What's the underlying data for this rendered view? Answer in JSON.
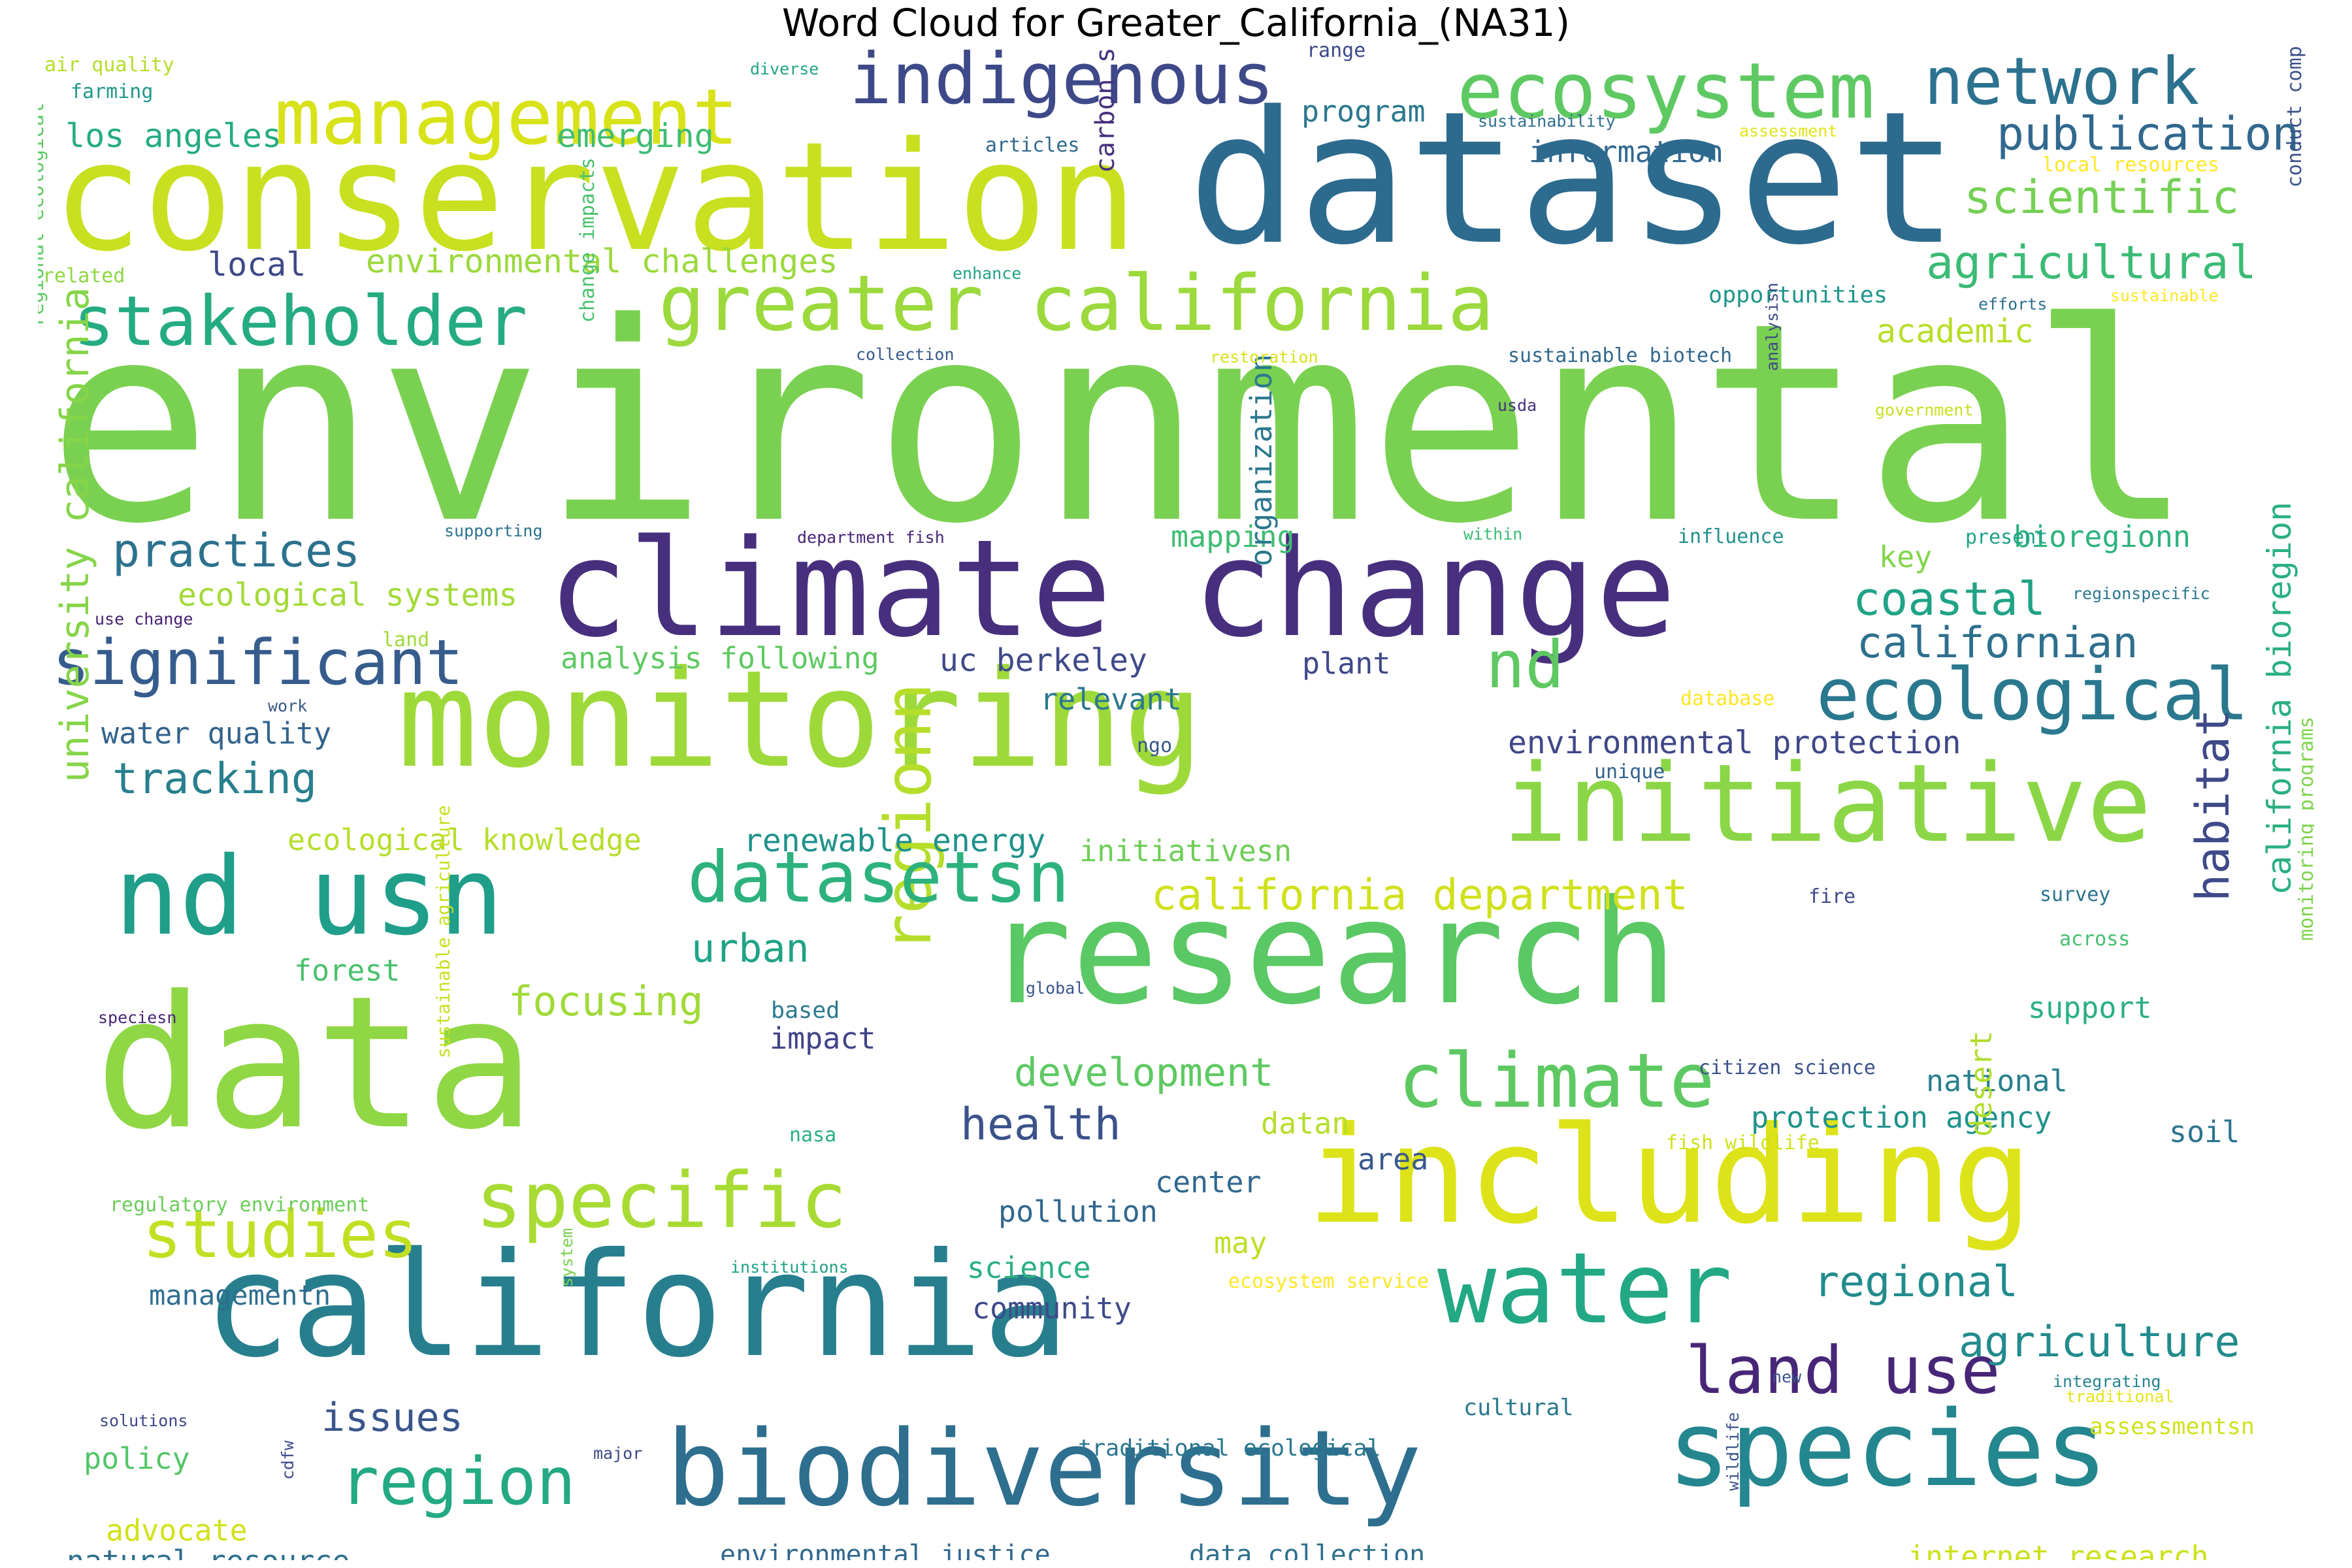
{
  "title": "Word Cloud for Greater_California_(NA31)",
  "palette": [
    "#440154",
    "#472c7a",
    "#3b518b",
    "#2c718e",
    "#21908d",
    "#27ad81",
    "#5cc863",
    "#aadc32",
    "#fde725"
  ],
  "words": [
    {
      "text": "environmental",
      "color": "#7ad151"
    },
    {
      "text": "dataset",
      "color": "#2c6b8e"
    },
    {
      "text": "conservation",
      "color": "#c8e020"
    },
    {
      "text": "climate change",
      "color": "#472f7d"
    },
    {
      "text": "monitoring",
      "color": "#9ed93a"
    },
    {
      "text": "research",
      "color": "#5ac864"
    },
    {
      "text": "data",
      "color": "#8fd744"
    },
    {
      "text": "california",
      "color": "#277f8e"
    },
    {
      "text": "including",
      "color": "#dde318"
    },
    {
      "text": "biodiversity",
      "color": "#2e6e8e"
    },
    {
      "text": "species",
      "color": "#24868e"
    },
    {
      "text": "initiative",
      "color": "#8bd646"
    },
    {
      "text": "nd usn",
      "color": "#1f9e89"
    },
    {
      "text": "water",
      "color": "#22a884"
    },
    {
      "text": "greater california",
      "color": "#9bd93c"
    },
    {
      "text": "management",
      "color": "#d8e219"
    },
    {
      "text": "ecosystem",
      "color": "#5ec962"
    },
    {
      "text": "indigenous",
      "color": "#3e4989"
    },
    {
      "text": "network",
      "color": "#2c728e"
    },
    {
      "text": "ecological",
      "color": "#2a788e"
    },
    {
      "text": "stakeholder",
      "color": "#25ab82"
    },
    {
      "text": "significant",
      "color": "#365c8d"
    },
    {
      "text": "climate",
      "color": "#5ec962"
    },
    {
      "text": "specific",
      "color": "#a8db34"
    },
    {
      "text": "regionn",
      "color": "#b5de2b"
    },
    {
      "text": "datasetsn",
      "color": "#2db27d"
    },
    {
      "text": "region",
      "color": "#23a983"
    },
    {
      "text": "studies",
      "color": "#c2df23"
    },
    {
      "text": "land use",
      "color": "#482677"
    },
    {
      "text": "nd",
      "color": "#5ec962"
    },
    {
      "text": "publication",
      "color": "#31688e"
    },
    {
      "text": "scientific",
      "color": "#75d054"
    },
    {
      "text": "agricultural",
      "color": "#3bbb75"
    },
    {
      "text": "practices",
      "color": "#2c728e"
    },
    {
      "text": "coastal",
      "color": "#20a386"
    },
    {
      "text": "californian",
      "color": "#2e6f8e"
    },
    {
      "text": "tracking",
      "color": "#277f8e"
    },
    {
      "text": "habitat",
      "color": "#3e4a89"
    },
    {
      "text": "university california",
      "color": "#86d549"
    },
    {
      "text": "california department",
      "color": "#d0e11c"
    },
    {
      "text": "regional",
      "color": "#228c8d"
    },
    {
      "text": "agriculture",
      "color": "#228b8d"
    },
    {
      "text": "health",
      "color": "#3b528b"
    },
    {
      "text": "development",
      "color": "#5ec962"
    },
    {
      "text": "urban",
      "color": "#20a386"
    },
    {
      "text": "focusing",
      "color": "#a0da39"
    },
    {
      "text": "issues",
      "color": "#39558c"
    },
    {
      "text": "los angeles",
      "color": "#25ab82"
    },
    {
      "text": "emerging",
      "color": "#3fbc73"
    },
    {
      "text": "information",
      "color": "#31688e"
    },
    {
      "text": "program",
      "color": "#2a788e"
    },
    {
      "text": "academic",
      "color": "#b8de29"
    },
    {
      "text": "environmental challenges",
      "color": "#9bd93c"
    },
    {
      "text": "local",
      "color": "#3e4989"
    },
    {
      "text": "ecological systems",
      "color": "#a2da37"
    },
    {
      "text": "analysis following",
      "color": "#5ec962"
    },
    {
      "text": "uc berkeley",
      "color": "#3e4a89"
    },
    {
      "text": "water quality",
      "color": "#33638d"
    },
    {
      "text": "environmental protection",
      "color": "#3f4788"
    },
    {
      "text": "ecological knowledge",
      "color": "#b5de2b"
    },
    {
      "text": "renewable energy",
      "color": "#20928c"
    },
    {
      "text": "initiativesn",
      "color": "#6ece58"
    },
    {
      "text": "forest",
      "color": "#4ac16d"
    },
    {
      "text": "california bioregion",
      "color": "#2ab07f"
    },
    {
      "text": "mapping",
      "color": "#3fbc73"
    },
    {
      "text": "key",
      "color": "#84d44b"
    },
    {
      "text": "plant",
      "color": "#3f4889"
    },
    {
      "text": "relevant",
      "color": "#2a788e"
    },
    {
      "text": "bioregionn",
      "color": "#2db27d"
    },
    {
      "text": "carbon sequestration",
      "color": "#46327e"
    },
    {
      "text": "organization",
      "color": "#2a788e"
    },
    {
      "text": "pollution",
      "color": "#31688e"
    },
    {
      "text": "science",
      "color": "#2ab07f"
    },
    {
      "text": "community",
      "color": "#3e4a89"
    },
    {
      "text": "national",
      "color": "#277f8e"
    },
    {
      "text": "protection agency",
      "color": "#20928c"
    },
    {
      "text": "soil",
      "color": "#2c738e"
    },
    {
      "text": "support",
      "color": "#2ab07f"
    },
    {
      "text": "impact",
      "color": "#414487"
    },
    {
      "text": "center",
      "color": "#31688e"
    },
    {
      "text": "area",
      "color": "#38598c"
    },
    {
      "text": "datan",
      "color": "#b5de2b"
    },
    {
      "text": "may",
      "color": "#bddf26"
    },
    {
      "text": "managementn",
      "color": "#2e6e8e"
    },
    {
      "text": "policy",
      "color": "#54c568"
    },
    {
      "text": "advocate",
      "color": "#d2e21b"
    },
    {
      "text": "natural resource",
      "color": "#2e6f8e"
    },
    {
      "text": "environmental justice",
      "color": "#31688e"
    },
    {
      "text": "data collection",
      "color": "#2d708e"
    },
    {
      "text": "internet research",
      "color": "#cde11d"
    },
    {
      "text": "assessmentsn",
      "color": "#d0e11c"
    },
    {
      "text": "cultural",
      "color": "#2a788e"
    },
    {
      "text": "traditional ecological",
      "color": "#2a778e"
    },
    {
      "text": "desert",
      "color": "#b2dd2d"
    },
    {
      "text": "monitoring programs",
      "color": "#7fd34e"
    },
    {
      "text": "conduct comprehensive",
      "color": "#3b528b"
    },
    {
      "text": "change impacts",
      "color": "#4ac16d"
    },
    {
      "text": "regional ecological",
      "color": "#5ec962"
    },
    {
      "text": "sustainable agriculture",
      "color": "#c8e020"
    },
    {
      "text": "air quality",
      "color": "#b5de2b"
    },
    {
      "text": "farming",
      "color": "#1f998a"
    },
    {
      "text": "diverse",
      "color": "#20a486"
    },
    {
      "text": "range",
      "color": "#3e4989"
    },
    {
      "text": "sustainability",
      "color": "#2e6f8e"
    },
    {
      "text": "assessment",
      "color": "#e2e418"
    },
    {
      "text": "articles",
      "color": "#31688e"
    },
    {
      "text": "local resources",
      "color": "#fde725"
    },
    {
      "text": "related",
      "color": "#8fd744"
    },
    {
      "text": "enhance",
      "color": "#1fa188"
    },
    {
      "text": "opportunities",
      "color": "#1f958b"
    },
    {
      "text": "efforts",
      "color": "#2d708e"
    },
    {
      "text": "sustainable",
      "color": "#fde725"
    },
    {
      "text": "collection",
      "color": "#38598c"
    },
    {
      "text": "restoration",
      "color": "#d8e219"
    },
    {
      "text": "sustainable biotech",
      "color": "#31688e"
    },
    {
      "text": "usda",
      "color": "#46327e"
    },
    {
      "text": "government",
      "color": "#c8e020"
    },
    {
      "text": "analysisn",
      "color": "#3e4a89"
    },
    {
      "text": "supporting",
      "color": "#2c728e"
    },
    {
      "text": "department fish",
      "color": "#482576"
    },
    {
      "text": "within",
      "color": "#3bbb75"
    },
    {
      "text": "influence",
      "color": "#21918c"
    },
    {
      "text": "present",
      "color": "#1fa188"
    },
    {
      "text": "regionspecific",
      "color": "#2a788e"
    },
    {
      "text": "use change",
      "color": "#482173"
    },
    {
      "text": "land",
      "color": "#a0da39"
    },
    {
      "text": "work",
      "color": "#38598c"
    },
    {
      "text": "database",
      "color": "#fde725"
    },
    {
      "text": "ngo",
      "color": "#39568c"
    },
    {
      "text": "unique",
      "color": "#33638d"
    },
    {
      "text": "fire",
      "color": "#3e4989"
    },
    {
      "text": "survey",
      "color": "#2c728e"
    },
    {
      "text": "across",
      "color": "#44bf70"
    },
    {
      "text": "global",
      "color": "#39568c"
    },
    {
      "text": "speciesn",
      "color": "#482677"
    },
    {
      "text": "based",
      "color": "#2a788e"
    },
    {
      "text": "citizen science",
      "color": "#3b528b"
    },
    {
      "text": "nasa",
      "color": "#2ab07f"
    },
    {
      "text": "fish wildlife",
      "color": "#d0e11c"
    },
    {
      "text": "regulatory environment",
      "color": "#6ccd5a"
    },
    {
      "text": "institutions",
      "color": "#1fa088"
    },
    {
      "text": "ecosystem service",
      "color": "#fde725"
    },
    {
      "text": "system",
      "color": "#7ad151"
    },
    {
      "text": "new",
      "color": "#39558c"
    },
    {
      "text": "integrating",
      "color": "#25848e"
    },
    {
      "text": "traditional",
      "color": "#e5e419"
    },
    {
      "text": "solutions",
      "color": "#3e4989"
    },
    {
      "text": "major",
      "color": "#3e4989"
    },
    {
      "text": "cdfw",
      "color": "#3e4989"
    },
    {
      "text": "wildlife",
      "color": "#3b528b"
    }
  ]
}
